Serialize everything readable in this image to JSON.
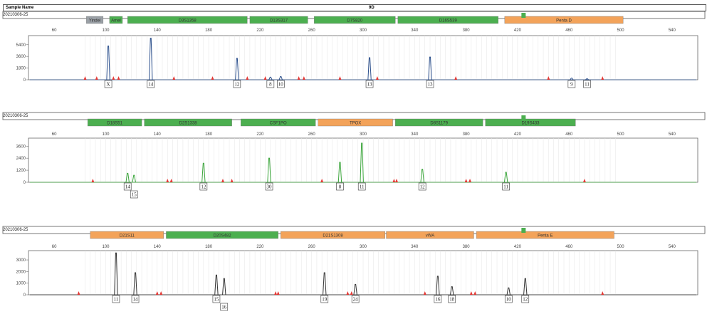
{
  "header": {
    "sample_name_label": "Sample Name",
    "sample_name_value": "9D"
  },
  "colors": {
    "blue_trace": "#2b4f8c",
    "green_trace": "#3aa53a",
    "black_trace": "#333333",
    "locus_green": "#4caf50",
    "locus_orange": "#f3a35a",
    "locus_gray": "#9aa0a6",
    "marker_red": "#e53935"
  },
  "chart_data": [
    {
      "type": "line",
      "date": "20210306-25",
      "x_ticks": [
        60,
        100,
        140,
        180,
        220,
        260,
        300,
        340,
        380,
        420,
        460,
        500,
        540
      ],
      "y_ticks": [
        0,
        1800,
        3600,
        5400
      ],
      "ylim": [
        0,
        6800
      ],
      "xlim": [
        40,
        560
      ],
      "trace_color": "blue",
      "loci": [
        {
          "label": "Yindel",
          "start": 85,
          "end": 98,
          "color": "gray"
        },
        {
          "label": "Amel",
          "start": 103,
          "end": 113,
          "color": "green"
        },
        {
          "label": "D3S1358",
          "start": 117,
          "end": 210,
          "color": "green"
        },
        {
          "label": "D13S317",
          "start": 212,
          "end": 257,
          "color": "green"
        },
        {
          "label": "D7S820",
          "start": 262,
          "end": 325,
          "color": "green"
        },
        {
          "label": "D16S539",
          "start": 327,
          "end": 405,
          "color": "green"
        },
        {
          "label": "Penta D",
          "start": 410,
          "end": 502,
          "color": "orange"
        }
      ],
      "peaks": [
        {
          "x": 102,
          "y": 5200,
          "allele": "X"
        },
        {
          "x": 135,
          "y": 6400,
          "allele": "14"
        },
        {
          "x": 202,
          "y": 3300,
          "allele": "12"
        },
        {
          "x": 228,
          "y": 400,
          "allele": "8"
        },
        {
          "x": 236,
          "y": 500,
          "allele": "10"
        },
        {
          "x": 305,
          "y": 3400,
          "allele": "13"
        },
        {
          "x": 352,
          "y": 3500,
          "allele": "13"
        },
        {
          "x": 462,
          "y": 250,
          "allele": "9"
        },
        {
          "x": 474,
          "y": 150,
          "allele": "11"
        }
      ],
      "markers": [
        84,
        93,
        106,
        110,
        153,
        183,
        210,
        224,
        250,
        254,
        282,
        311,
        372,
        444,
        486
      ]
    },
    {
      "type": "line",
      "date": "20210306-25",
      "x_ticks": [
        60,
        100,
        140,
        180,
        220,
        260,
        300,
        340,
        380,
        420,
        460,
        500,
        540
      ],
      "y_ticks": [
        0,
        1200,
        2400,
        3600
      ],
      "ylim": [
        0,
        4400
      ],
      "xlim": [
        40,
        560
      ],
      "trace_color": "green",
      "loci": [
        {
          "label": "D18S51",
          "start": 86,
          "end": 128,
          "color": "green"
        },
        {
          "label": "D2S1338",
          "start": 130,
          "end": 198,
          "color": "green"
        },
        {
          "label": "CSF1PO",
          "start": 205,
          "end": 263,
          "color": "green"
        },
        {
          "label": "TPOX",
          "start": 265,
          "end": 323,
          "color": "orange"
        },
        {
          "label": "D8S1179",
          "start": 325,
          "end": 393,
          "color": "green"
        },
        {
          "label": "D19S433",
          "start": 395,
          "end": 465,
          "color": "green"
        }
      ],
      "peaks": [
        {
          "x": 117,
          "y": 900,
          "allele": "14",
          "row": 0
        },
        {
          "x": 122,
          "y": 700,
          "allele": "15",
          "row": 1
        },
        {
          "x": 176,
          "y": 1900,
          "allele": "12",
          "row": 0
        },
        {
          "x": 227,
          "y": 2400,
          "allele": "30",
          "row": 0
        },
        {
          "x": 282,
          "y": 2000,
          "allele": "8",
          "row": 0
        },
        {
          "x": 299,
          "y": 3900,
          "allele": "11",
          "row": 0
        },
        {
          "x": 346,
          "y": 1300,
          "allele": "12",
          "row": 0
        },
        {
          "x": 411,
          "y": 1000,
          "allele": "11",
          "row": 0
        }
      ],
      "markers": [
        90,
        148,
        151,
        191,
        198,
        268,
        324,
        326,
        380,
        383,
        472
      ]
    },
    {
      "type": "line",
      "date": "20210306-25",
      "x_ticks": [
        60,
        100,
        140,
        180,
        220,
        260,
        300,
        340,
        380,
        420,
        460,
        500,
        540
      ],
      "y_ticks": [
        0,
        1000,
        2000,
        3000
      ],
      "ylim": [
        0,
        3800
      ],
      "xlim": [
        40,
        560
      ],
      "trace_color": "black",
      "loci": [
        {
          "label": "D21S11",
          "start": 88,
          "end": 145,
          "color": "orange"
        },
        {
          "label": "D20S482",
          "start": 147,
          "end": 234,
          "color": "green"
        },
        {
          "label": "D21S1308",
          "start": 236,
          "end": 317,
          "color": "orange"
        },
        {
          "label": "vWA",
          "start": 318,
          "end": 386,
          "color": "orange"
        },
        {
          "label": "Penta E",
          "start": 388,
          "end": 495,
          "color": "orange"
        }
      ],
      "peaks": [
        {
          "x": 108,
          "y": 3600,
          "allele": "11",
          "row": 0
        },
        {
          "x": 123,
          "y": 1900,
          "allele": "14",
          "row": 0
        },
        {
          "x": 186,
          "y": 1700,
          "allele": "15",
          "row": 0
        },
        {
          "x": 192,
          "y": 1400,
          "allele": "16",
          "row": 1
        },
        {
          "x": 270,
          "y": 1900,
          "allele": "19",
          "row": 0
        },
        {
          "x": 294,
          "y": 900,
          "allele": "24",
          "row": 0
        },
        {
          "x": 358,
          "y": 1600,
          "allele": "16",
          "row": 0
        },
        {
          "x": 369,
          "y": 700,
          "allele": "18",
          "row": 0
        },
        {
          "x": 413,
          "y": 600,
          "allele": "10",
          "row": 0
        },
        {
          "x": 426,
          "y": 1400,
          "allele": "12",
          "row": 0
        }
      ],
      "markers": [
        79,
        140,
        143,
        232,
        234,
        288,
        291,
        348,
        384,
        387,
        486
      ]
    }
  ]
}
